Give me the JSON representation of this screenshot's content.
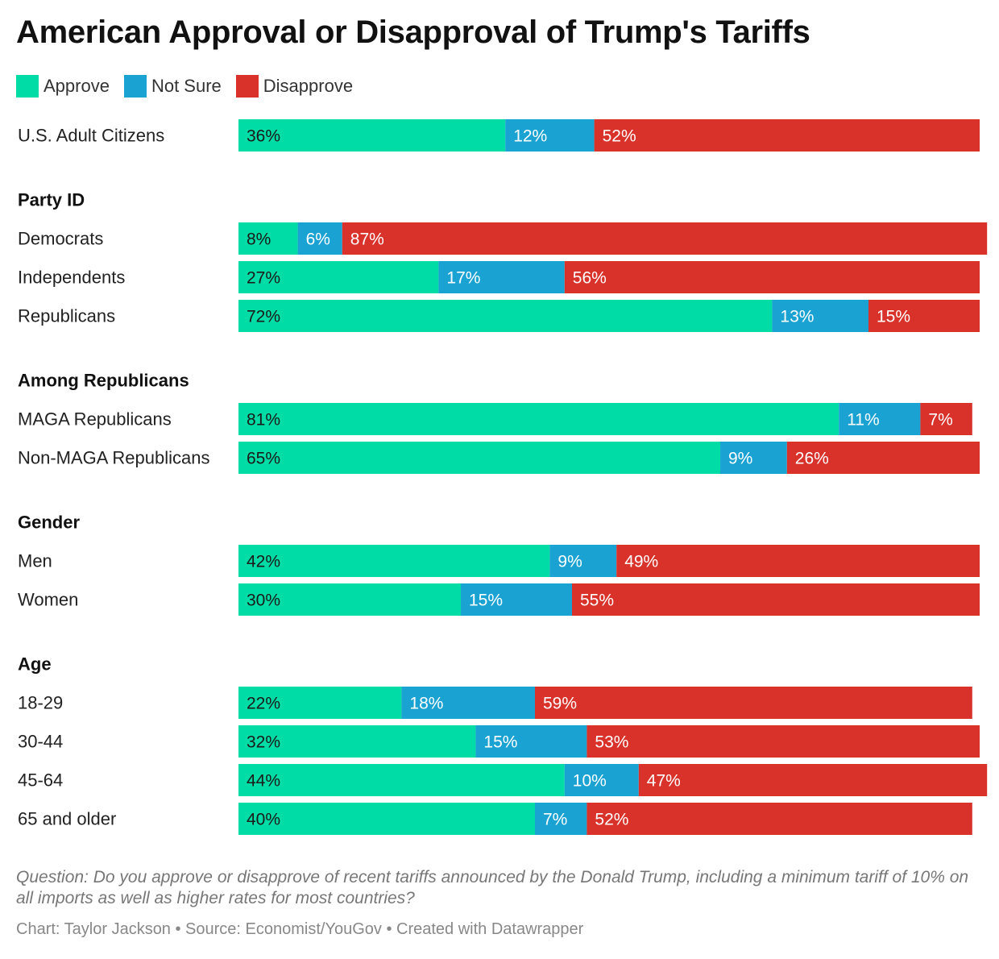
{
  "colors": {
    "approve": "#00dca6",
    "not_sure": "#1aa2d2",
    "disapprove": "#d8322b"
  },
  "chart_data": {
    "type": "bar",
    "orientation": "horizontal",
    "stacked": true,
    "title": "American Approval or Disapproval of Trump's Tariffs",
    "legend_position": "top-left",
    "series": [
      {
        "name": "Approve",
        "color": "#00dca6"
      },
      {
        "name": "Not Sure",
        "color": "#1aa2d2"
      },
      {
        "name": "Disapprove",
        "color": "#d8322b"
      }
    ],
    "groups": [
      {
        "label": "",
        "rows": [
          {
            "label": "U.S. Adult Citizens",
            "values": [
              36,
              12,
              52
            ]
          }
        ]
      },
      {
        "label": "Party ID",
        "rows": [
          {
            "label": "Democrats",
            "values": [
              8,
              6,
              87
            ]
          },
          {
            "label": "Independents",
            "values": [
              27,
              17,
              56
            ]
          },
          {
            "label": "Republicans",
            "values": [
              72,
              13,
              15
            ]
          }
        ]
      },
      {
        "label": "Among Republicans",
        "rows": [
          {
            "label": "MAGA Republicans",
            "values": [
              81,
              11,
              7
            ]
          },
          {
            "label": "Non-MAGA Republicans",
            "values": [
              65,
              9,
              26
            ]
          }
        ]
      },
      {
        "label": "Gender",
        "rows": [
          {
            "label": "Men",
            "values": [
              42,
              9,
              49
            ]
          },
          {
            "label": "Women",
            "values": [
              30,
              15,
              55
            ]
          }
        ]
      },
      {
        "label": "Age",
        "rows": [
          {
            "label": "18-29",
            "values": [
              22,
              18,
              59
            ]
          },
          {
            "label": "30-44",
            "values": [
              32,
              15,
              53
            ]
          },
          {
            "label": "45-64",
            "values": [
              44,
              10,
              47
            ]
          },
          {
            "label": "65 and older",
            "values": [
              40,
              7,
              52
            ]
          }
        ]
      }
    ],
    "value_suffix": "%",
    "note": "Question: Do you approve or disapprove of recent tariffs announced by the Donald Trump, including a minimum tariff of 10% on all imports as well as higher rates for most countries?",
    "credits": "Chart: Taylor Jackson • Source: Economist/YouGov • Created with Datawrapper"
  }
}
